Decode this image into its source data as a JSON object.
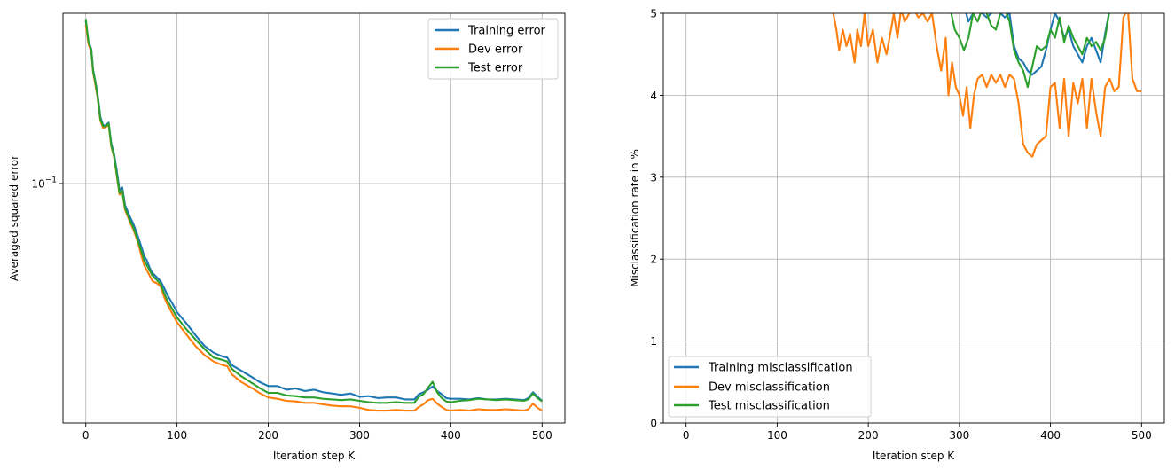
{
  "colors": {
    "training": "#1f77b4",
    "dev": "#ff7f0e",
    "test": "#2ca02c",
    "grid": "#b0b0b0"
  },
  "chart_data": [
    {
      "type": "line",
      "xlabel": "Iteration step K",
      "ylabel": "Averaged squared error",
      "yscale": "log",
      "xlim": [
        -25,
        525
      ],
      "ylim": [
        0.0165,
        0.36
      ],
      "xticks": [
        0,
        100,
        200,
        300,
        400,
        500
      ],
      "xtick_labels": [
        "0",
        "100",
        "200",
        "300",
        "400",
        "500"
      ],
      "yticks": [
        0.1
      ],
      "ytick_labels": [
        {
          "base": "10",
          "exp": "−1"
        }
      ],
      "grid": true,
      "legend_placement": "upper right",
      "series": [
        {
          "name": "Training error",
          "color": "#1f77b4",
          "x": [
            0,
            3,
            6,
            8,
            10,
            13,
            16,
            19,
            22,
            25,
            28,
            31,
            34,
            37,
            40,
            43,
            46,
            49,
            52,
            55,
            58,
            61,
            64,
            67,
            70,
            73,
            76,
            79,
            82,
            86,
            90,
            95,
            100,
            110,
            120,
            130,
            140,
            150,
            155,
            160,
            170,
            178,
            185,
            190,
            200,
            210,
            220,
            230,
            240,
            250,
            260,
            270,
            280,
            290,
            300,
            310,
            320,
            330,
            340,
            350,
            360,
            365,
            370,
            375,
            380,
            385,
            390,
            395,
            400,
            410,
            420,
            430,
            440,
            450,
            460,
            470,
            480,
            485,
            490,
            495,
            500
          ],
          "values": [
            0.34,
            0.29,
            0.275,
            0.235,
            0.22,
            0.195,
            0.165,
            0.155,
            0.155,
            0.158,
            0.135,
            0.125,
            0.11,
            0.095,
            0.097,
            0.085,
            0.081,
            0.077,
            0.074,
            0.07,
            0.066,
            0.062,
            0.058,
            0.056,
            0.053,
            0.051,
            0.05,
            0.049,
            0.048,
            0.0455,
            0.043,
            0.0405,
            0.038,
            0.035,
            0.032,
            0.0295,
            0.028,
            0.0272,
            0.027,
            0.0255,
            0.0245,
            0.0237,
            0.023,
            0.0225,
            0.0218,
            0.0218,
            0.0212,
            0.0214,
            0.021,
            0.0212,
            0.0208,
            0.0206,
            0.0204,
            0.0206,
            0.0201,
            0.0202,
            0.0199,
            0.02,
            0.02,
            0.0197,
            0.0197,
            0.0205,
            0.0208,
            0.0212,
            0.0217,
            0.021,
            0.0205,
            0.0199,
            0.0198,
            0.0198,
            0.0197,
            0.0199,
            0.0197,
            0.0197,
            0.0198,
            0.0197,
            0.0196,
            0.0199,
            0.0208,
            0.0201,
            0.0195
          ]
        },
        {
          "name": "Dev error",
          "color": "#ff7f0e",
          "x": [
            0,
            3,
            6,
            8,
            10,
            13,
            16,
            19,
            22,
            25,
            28,
            31,
            34,
            37,
            40,
            43,
            46,
            49,
            52,
            55,
            58,
            61,
            64,
            67,
            70,
            73,
            76,
            79,
            82,
            86,
            90,
            95,
            100,
            110,
            120,
            130,
            140,
            150,
            155,
            160,
            170,
            178,
            185,
            190,
            200,
            210,
            220,
            230,
            240,
            250,
            260,
            270,
            280,
            290,
            300,
            310,
            320,
            330,
            340,
            350,
            360,
            365,
            370,
            375,
            380,
            385,
            390,
            395,
            400,
            410,
            420,
            430,
            440,
            450,
            460,
            470,
            480,
            485,
            490,
            495,
            500
          ],
          "values": [
            0.33,
            0.285,
            0.27,
            0.23,
            0.215,
            0.19,
            0.16,
            0.152,
            0.153,
            0.156,
            0.132,
            0.122,
            0.106,
            0.092,
            0.094,
            0.082,
            0.078,
            0.074,
            0.071,
            0.067,
            0.063,
            0.058,
            0.054,
            0.052,
            0.05,
            0.048,
            0.0475,
            0.047,
            0.046,
            0.0425,
            0.04,
            0.0375,
            0.0352,
            0.0322,
            0.0295,
            0.0275,
            0.0262,
            0.0255,
            0.0253,
            0.0238,
            0.0225,
            0.0218,
            0.0212,
            0.0207,
            0.02,
            0.0198,
            0.0195,
            0.0194,
            0.0192,
            0.0192,
            0.019,
            0.0188,
            0.0187,
            0.0187,
            0.0185,
            0.0182,
            0.0181,
            0.0181,
            0.0182,
            0.0181,
            0.0181,
            0.0186,
            0.019,
            0.0196,
            0.0198,
            0.0191,
            0.0186,
            0.0182,
            0.0181,
            0.0182,
            0.0181,
            0.0183,
            0.0182,
            0.0182,
            0.0183,
            0.0182,
            0.0181,
            0.0183,
            0.0191,
            0.0185,
            0.0181
          ]
        },
        {
          "name": "Test error",
          "color": "#2ca02c",
          "x": [
            0,
            3,
            6,
            8,
            10,
            13,
            16,
            19,
            22,
            25,
            28,
            31,
            34,
            37,
            40,
            43,
            46,
            49,
            52,
            55,
            58,
            61,
            64,
            67,
            70,
            73,
            76,
            79,
            82,
            86,
            90,
            95,
            100,
            110,
            120,
            130,
            140,
            150,
            155,
            160,
            170,
            178,
            185,
            190,
            200,
            210,
            220,
            230,
            240,
            250,
            260,
            270,
            280,
            290,
            300,
            310,
            320,
            330,
            340,
            350,
            360,
            365,
            370,
            375,
            380,
            385,
            390,
            395,
            400,
            410,
            420,
            430,
            440,
            450,
            460,
            470,
            480,
            485,
            490,
            495,
            500
          ],
          "values": [
            0.345,
            0.29,
            0.273,
            0.232,
            0.218,
            0.192,
            0.162,
            0.154,
            0.154,
            0.157,
            0.133,
            0.123,
            0.107,
            0.093,
            0.095,
            0.083,
            0.079,
            0.075,
            0.072,
            0.068,
            0.064,
            0.06,
            0.056,
            0.054,
            0.052,
            0.05,
            0.049,
            0.048,
            0.047,
            0.0438,
            0.0412,
            0.0388,
            0.0365,
            0.0335,
            0.031,
            0.0288,
            0.027,
            0.0265,
            0.0262,
            0.0248,
            0.0235,
            0.0227,
            0.022,
            0.0215,
            0.0207,
            0.0207,
            0.0203,
            0.0202,
            0.02,
            0.02,
            0.0198,
            0.0197,
            0.0196,
            0.0197,
            0.0195,
            0.0193,
            0.0192,
            0.0192,
            0.0193,
            0.0192,
            0.0192,
            0.0201,
            0.0205,
            0.0215,
            0.0225,
            0.0208,
            0.0199,
            0.0194,
            0.0193,
            0.0195,
            0.0196,
            0.0198,
            0.0197,
            0.0196,
            0.0197,
            0.0196,
            0.0195,
            0.0197,
            0.0206,
            0.0199,
            0.0194
          ]
        }
      ]
    },
    {
      "type": "line",
      "xlabel": "Iteration step K",
      "ylabel": "Misclassification rate in %",
      "xlim": [
        -25,
        525
      ],
      "ylim": [
        0,
        5
      ],
      "xticks": [
        0,
        100,
        200,
        300,
        400,
        500
      ],
      "xtick_labels": [
        "0",
        "100",
        "200",
        "300",
        "400",
        "500"
      ],
      "yticks": [
        0,
        1,
        2,
        3,
        4,
        5
      ],
      "ytick_labels": [
        "0",
        "1",
        "2",
        "3",
        "4",
        "5"
      ],
      "grid": true,
      "legend_placement": "lower left",
      "series": [
        {
          "name": "Training misclassification",
          "color": "#1f77b4",
          "x": [
            305,
            310,
            315,
            320,
            325,
            330,
            335,
            340,
            345,
            350,
            355,
            360,
            365,
            370,
            375,
            380,
            385,
            390,
            395,
            400,
            405,
            410,
            415,
            420,
            425,
            430,
            435,
            440,
            445,
            450,
            455,
            460,
            465
          ],
          "values": [
            5.1,
            4.9,
            5.0,
            5.05,
            5.0,
            4.95,
            5.0,
            5.05,
            5.0,
            4.95,
            5.0,
            4.6,
            4.45,
            4.4,
            4.3,
            4.25,
            4.3,
            4.35,
            4.55,
            4.8,
            5.0,
            4.9,
            4.7,
            4.8,
            4.6,
            4.5,
            4.4,
            4.6,
            4.7,
            4.55,
            4.4,
            4.75,
            5.05
          ]
        },
        {
          "name": "Dev misclassification",
          "color": "#ff7f0e",
          "x": [
            160,
            165,
            168,
            172,
            176,
            180,
            185,
            188,
            192,
            196,
            200,
            205,
            210,
            215,
            220,
            225,
            228,
            232,
            236,
            240,
            245,
            250,
            255,
            260,
            265,
            270,
            275,
            280,
            285,
            288,
            292,
            296,
            300,
            304,
            308,
            312,
            316,
            320,
            325,
            330,
            335,
            340,
            345,
            350,
            355,
            360,
            365,
            370,
            375,
            380,
            385,
            390,
            395,
            400,
            405,
            410,
            415,
            420,
            425,
            430,
            435,
            440,
            445,
            450,
            455,
            460,
            465,
            470,
            475,
            480,
            485,
            490,
            495,
            500
          ],
          "values": [
            5.1,
            4.8,
            4.55,
            4.8,
            4.6,
            4.75,
            4.4,
            4.8,
            4.6,
            5.0,
            4.6,
            4.8,
            4.4,
            4.7,
            4.5,
            4.8,
            5.0,
            4.7,
            5.05,
            4.9,
            5.0,
            5.05,
            4.95,
            5.0,
            4.9,
            5.0,
            4.6,
            4.3,
            4.7,
            4.0,
            4.4,
            4.1,
            4.0,
            3.75,
            4.1,
            3.6,
            4.0,
            4.2,
            4.25,
            4.1,
            4.25,
            4.15,
            4.25,
            4.1,
            4.25,
            4.2,
            3.9,
            3.4,
            3.3,
            3.25,
            3.4,
            3.45,
            3.5,
            4.1,
            4.15,
            3.6,
            4.2,
            3.5,
            4.15,
            3.9,
            4.2,
            3.6,
            4.2,
            3.8,
            3.5,
            4.1,
            4.2,
            4.05,
            4.1,
            4.95,
            5.05,
            4.2,
            4.05,
            4.05
          ]
        },
        {
          "name": "Test misclassification",
          "color": "#2ca02c",
          "x": [
            290,
            295,
            300,
            305,
            310,
            315,
            320,
            325,
            330,
            335,
            340,
            345,
            350,
            355,
            360,
            365,
            370,
            375,
            380,
            385,
            390,
            395,
            400,
            405,
            410,
            415,
            420,
            425,
            430,
            435,
            440,
            445,
            450,
            455,
            460,
            465
          ],
          "values": [
            5.05,
            4.8,
            4.7,
            4.55,
            4.7,
            5.0,
            4.9,
            5.05,
            5.0,
            4.85,
            4.8,
            5.0,
            5.05,
            4.9,
            4.55,
            4.4,
            4.3,
            4.1,
            4.35,
            4.6,
            4.55,
            4.6,
            4.8,
            4.7,
            4.95,
            4.65,
            4.85,
            4.7,
            4.6,
            4.5,
            4.7,
            4.6,
            4.65,
            4.55,
            4.7,
            5.05
          ]
        }
      ]
    }
  ]
}
